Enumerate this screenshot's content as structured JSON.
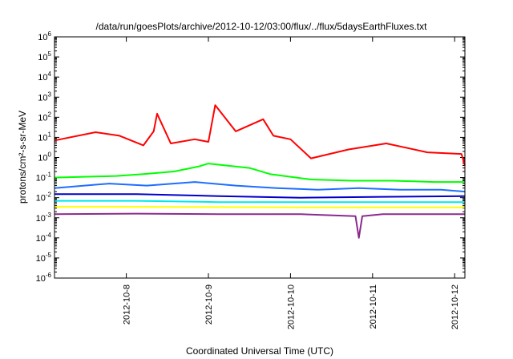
{
  "chart_data": {
    "type": "line",
    "title": "/data/run/goesPlots/archive/2012-10-12/03:00/flux/../flux/5daysEarthFluxes.txt",
    "xlabel": "Coordinated Universal Time (UTC)",
    "ylabel": "protons/cm²-s-sr-MeV",
    "yscale": "log",
    "ylim": [
      1e-06,
      1000000.0
    ],
    "xlim": [
      "2012-10-07 03:00",
      "2012-10-12 03:00"
    ],
    "ytick_labels": [
      {
        "base": "10",
        "exp": "-6"
      },
      {
        "base": "10",
        "exp": "-5"
      },
      {
        "base": "10",
        "exp": "-4"
      },
      {
        "base": "10",
        "exp": "-3"
      },
      {
        "base": "10",
        "exp": "-2"
      },
      {
        "base": "10",
        "exp": "-1"
      },
      {
        "base": "10",
        "exp": "0"
      },
      {
        "base": "10",
        "exp": "1"
      },
      {
        "base": "10",
        "exp": "2"
      },
      {
        "base": "10",
        "exp": "3"
      },
      {
        "base": "10",
        "exp": "4"
      },
      {
        "base": "10",
        "exp": "5"
      },
      {
        "base": "10",
        "exp": "6"
      }
    ],
    "xtick_labels": [
      "2012-10-8",
      "2012-10-9",
      "2012-10-10",
      "2012-10-11",
      "2012-10-12"
    ],
    "grid": false,
    "legend": "none",
    "series": [
      {
        "color": "#ff0000",
        "x": [
          "2012-10-07 03:00",
          "2012-10-07 15:00",
          "2012-10-07 22:00",
          "2012-10-08 05:00",
          "2012-10-08 08:00",
          "2012-10-08 09:00",
          "2012-10-08 13:00",
          "2012-10-08 20:00",
          "2012-10-09 00:00",
          "2012-10-09 02:00",
          "2012-10-09 08:00",
          "2012-10-09 16:00",
          "2012-10-09 19:00",
          "2012-10-10 00:00",
          "2012-10-10 06:00",
          "2012-10-10 17:00",
          "2012-10-11 04:00",
          "2012-10-11 16:00",
          "2012-10-12 02:00",
          "2012-10-12 03:00"
        ],
        "values": [
          7,
          18,
          12,
          4,
          20,
          150,
          5,
          8,
          6,
          400,
          20,
          80,
          12,
          8,
          0.9,
          2.5,
          5,
          1.8,
          1.5,
          0.4
        ]
      },
      {
        "color": "#00ff00",
        "x": [
          "2012-10-07 03:00",
          "2012-10-07 21:00",
          "2012-10-08 05:00",
          "2012-10-08 14:00",
          "2012-10-08 21:00",
          "2012-10-09 00:00",
          "2012-10-09 12:00",
          "2012-10-09 18:00",
          "2012-10-10 06:00",
          "2012-10-10 18:00",
          "2012-10-11 06:00",
          "2012-10-11 18:00",
          "2012-10-12 03:00"
        ],
        "values": [
          0.1,
          0.12,
          0.15,
          0.2,
          0.35,
          0.5,
          0.3,
          0.15,
          0.08,
          0.07,
          0.07,
          0.06,
          0.06
        ]
      },
      {
        "color": "#1e6eff",
        "x": [
          "2012-10-07 03:00",
          "2012-10-07 19:00",
          "2012-10-08 06:00",
          "2012-10-08 20:00",
          "2012-10-09 08:00",
          "2012-10-09 20:00",
          "2012-10-10 08:00",
          "2012-10-10 20:00",
          "2012-10-11 08:00",
          "2012-10-11 20:00",
          "2012-10-12 03:00"
        ],
        "values": [
          0.03,
          0.05,
          0.04,
          0.06,
          0.04,
          0.03,
          0.025,
          0.03,
          0.025,
          0.025,
          0.02
        ]
      },
      {
        "color": "#0000cc",
        "x": [
          "2012-10-07 03:00",
          "2012-10-08 03:00",
          "2012-10-09 03:00",
          "2012-10-10 03:00",
          "2012-10-11 03:00",
          "2012-10-12 03:00"
        ],
        "values": [
          0.015,
          0.015,
          0.012,
          0.01,
          0.011,
          0.012
        ]
      },
      {
        "color": "#00e8e8",
        "x": [
          "2012-10-07 03:00",
          "2012-10-08 03:00",
          "2012-10-09 03:00",
          "2012-10-10 03:00",
          "2012-10-11 03:00",
          "2012-10-12 03:00"
        ],
        "values": [
          0.007,
          0.007,
          0.006,
          0.006,
          0.006,
          0.006
        ]
      },
      {
        "color": "#ffff00",
        "x": [
          "2012-10-07 03:00",
          "2012-10-08 03:00",
          "2012-10-09 03:00",
          "2012-10-10 03:00",
          "2012-10-11 03:00",
          "2012-10-12 03:00"
        ],
        "values": [
          0.0035,
          0.0035,
          0.0034,
          0.0033,
          0.0033,
          0.0033
        ]
      },
      {
        "color": "#8b2b8b",
        "x": [
          "2012-10-07 03:00",
          "2012-10-08 03:00",
          "2012-10-09 03:00",
          "2012-10-10 03:00",
          "2012-10-10 19:00",
          "2012-10-10 20:00",
          "2012-10-10 21:00",
          "2012-10-11 03:00",
          "2012-10-12 03:00"
        ],
        "values": [
          0.0015,
          0.0016,
          0.0015,
          0.0015,
          0.0012,
          0.0001,
          0.0012,
          0.0015,
          0.0015
        ]
      }
    ]
  }
}
